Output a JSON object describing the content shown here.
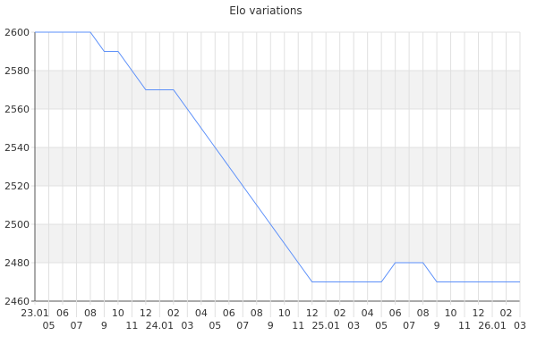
{
  "chart_data": {
    "type": "line",
    "title": "Elo variations",
    "xlabel": "",
    "ylabel": "",
    "ylim": [
      2460,
      2600
    ],
    "yticks": [
      2460,
      2480,
      2500,
      2520,
      2540,
      2560,
      2580,
      2600
    ],
    "grid": true,
    "categories": [
      "23.01",
      "05",
      "06",
      "07",
      "08",
      "9",
      "10",
      "11",
      "12",
      "24.01",
      "02",
      "03",
      "04",
      "05",
      "06",
      "07",
      "08",
      "9",
      "10",
      "11",
      "12",
      "25.01",
      "02",
      "03",
      "04",
      "05",
      "06",
      "07",
      "08",
      "9",
      "10",
      "11",
      "12",
      "26.01",
      "02",
      "03"
    ],
    "series": [
      {
        "values": [
          2600,
          2600,
          2600,
          2600,
          2600,
          2590,
          2590,
          2580,
          2570,
          2570,
          2570,
          2560,
          2550,
          2540,
          2530,
          2520,
          2510,
          2500,
          2490,
          2480,
          2470,
          2470,
          2470,
          2470,
          2470,
          2470,
          2480,
          2480,
          2480,
          2470,
          2470,
          2470,
          2470,
          2470,
          2470,
          2470
        ]
      }
    ],
    "colors": {
      "line": "#5b8ff9",
      "band": "#f2f2f2",
      "grid": "#e0e0e0"
    }
  }
}
